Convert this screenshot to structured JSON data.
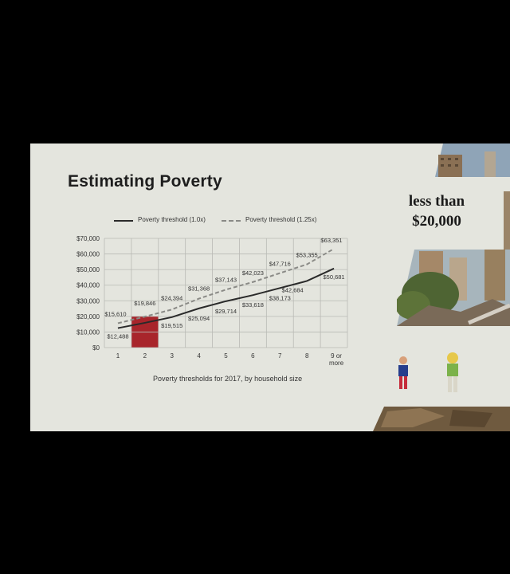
{
  "slide": {
    "title": "Estimating Poverty",
    "headline_line1": "less than",
    "headline_line2": "$20,000",
    "caption": "Poverty thresholds for 2017, by household size"
  },
  "colors": {
    "background": "#000000",
    "slide": "#e4e5de",
    "threshold_line": "#2a2a2a",
    "threshold_125_line": "#8a8a86",
    "highlight_bar": "#a8252b",
    "grid": "#b9bab5"
  },
  "chart_data": {
    "type": "line",
    "x": [
      "1",
      "2",
      "3",
      "4",
      "5",
      "6",
      "7",
      "8",
      "9 or more"
    ],
    "ylim": [
      0,
      70000
    ],
    "y_ticks": [
      "$0",
      "$10,000",
      "$20,000",
      "$30,000",
      "$40,000",
      "$50,000",
      "$60,000",
      "$70,000"
    ],
    "grid": true,
    "legend_position": "top",
    "series": [
      {
        "name": "Poverty threshold (1.0x)",
        "style": "solid",
        "values": [
          12488,
          15876,
          19515,
          25094,
          29714,
          33618,
          38173,
          42684,
          50681
        ],
        "labels": [
          "$12,488",
          "",
          "$19,515",
          "$25,094",
          "$29,714",
          "$33,618",
          "$38,173",
          "$42,684",
          "$50,681"
        ]
      },
      {
        "name": "Poverty threshold (1.25x)",
        "style": "dashed",
        "values": [
          15610,
          19846,
          24394,
          31368,
          37143,
          42023,
          47716,
          53355,
          63351
        ],
        "labels": [
          "$15,610",
          "$19,846",
          "$24,394",
          "$31,368",
          "$37,143",
          "$42,023",
          "$47,716",
          "$53,355",
          "$63,351"
        ]
      }
    ],
    "highlight": {
      "category": "2",
      "value": 20000
    }
  }
}
